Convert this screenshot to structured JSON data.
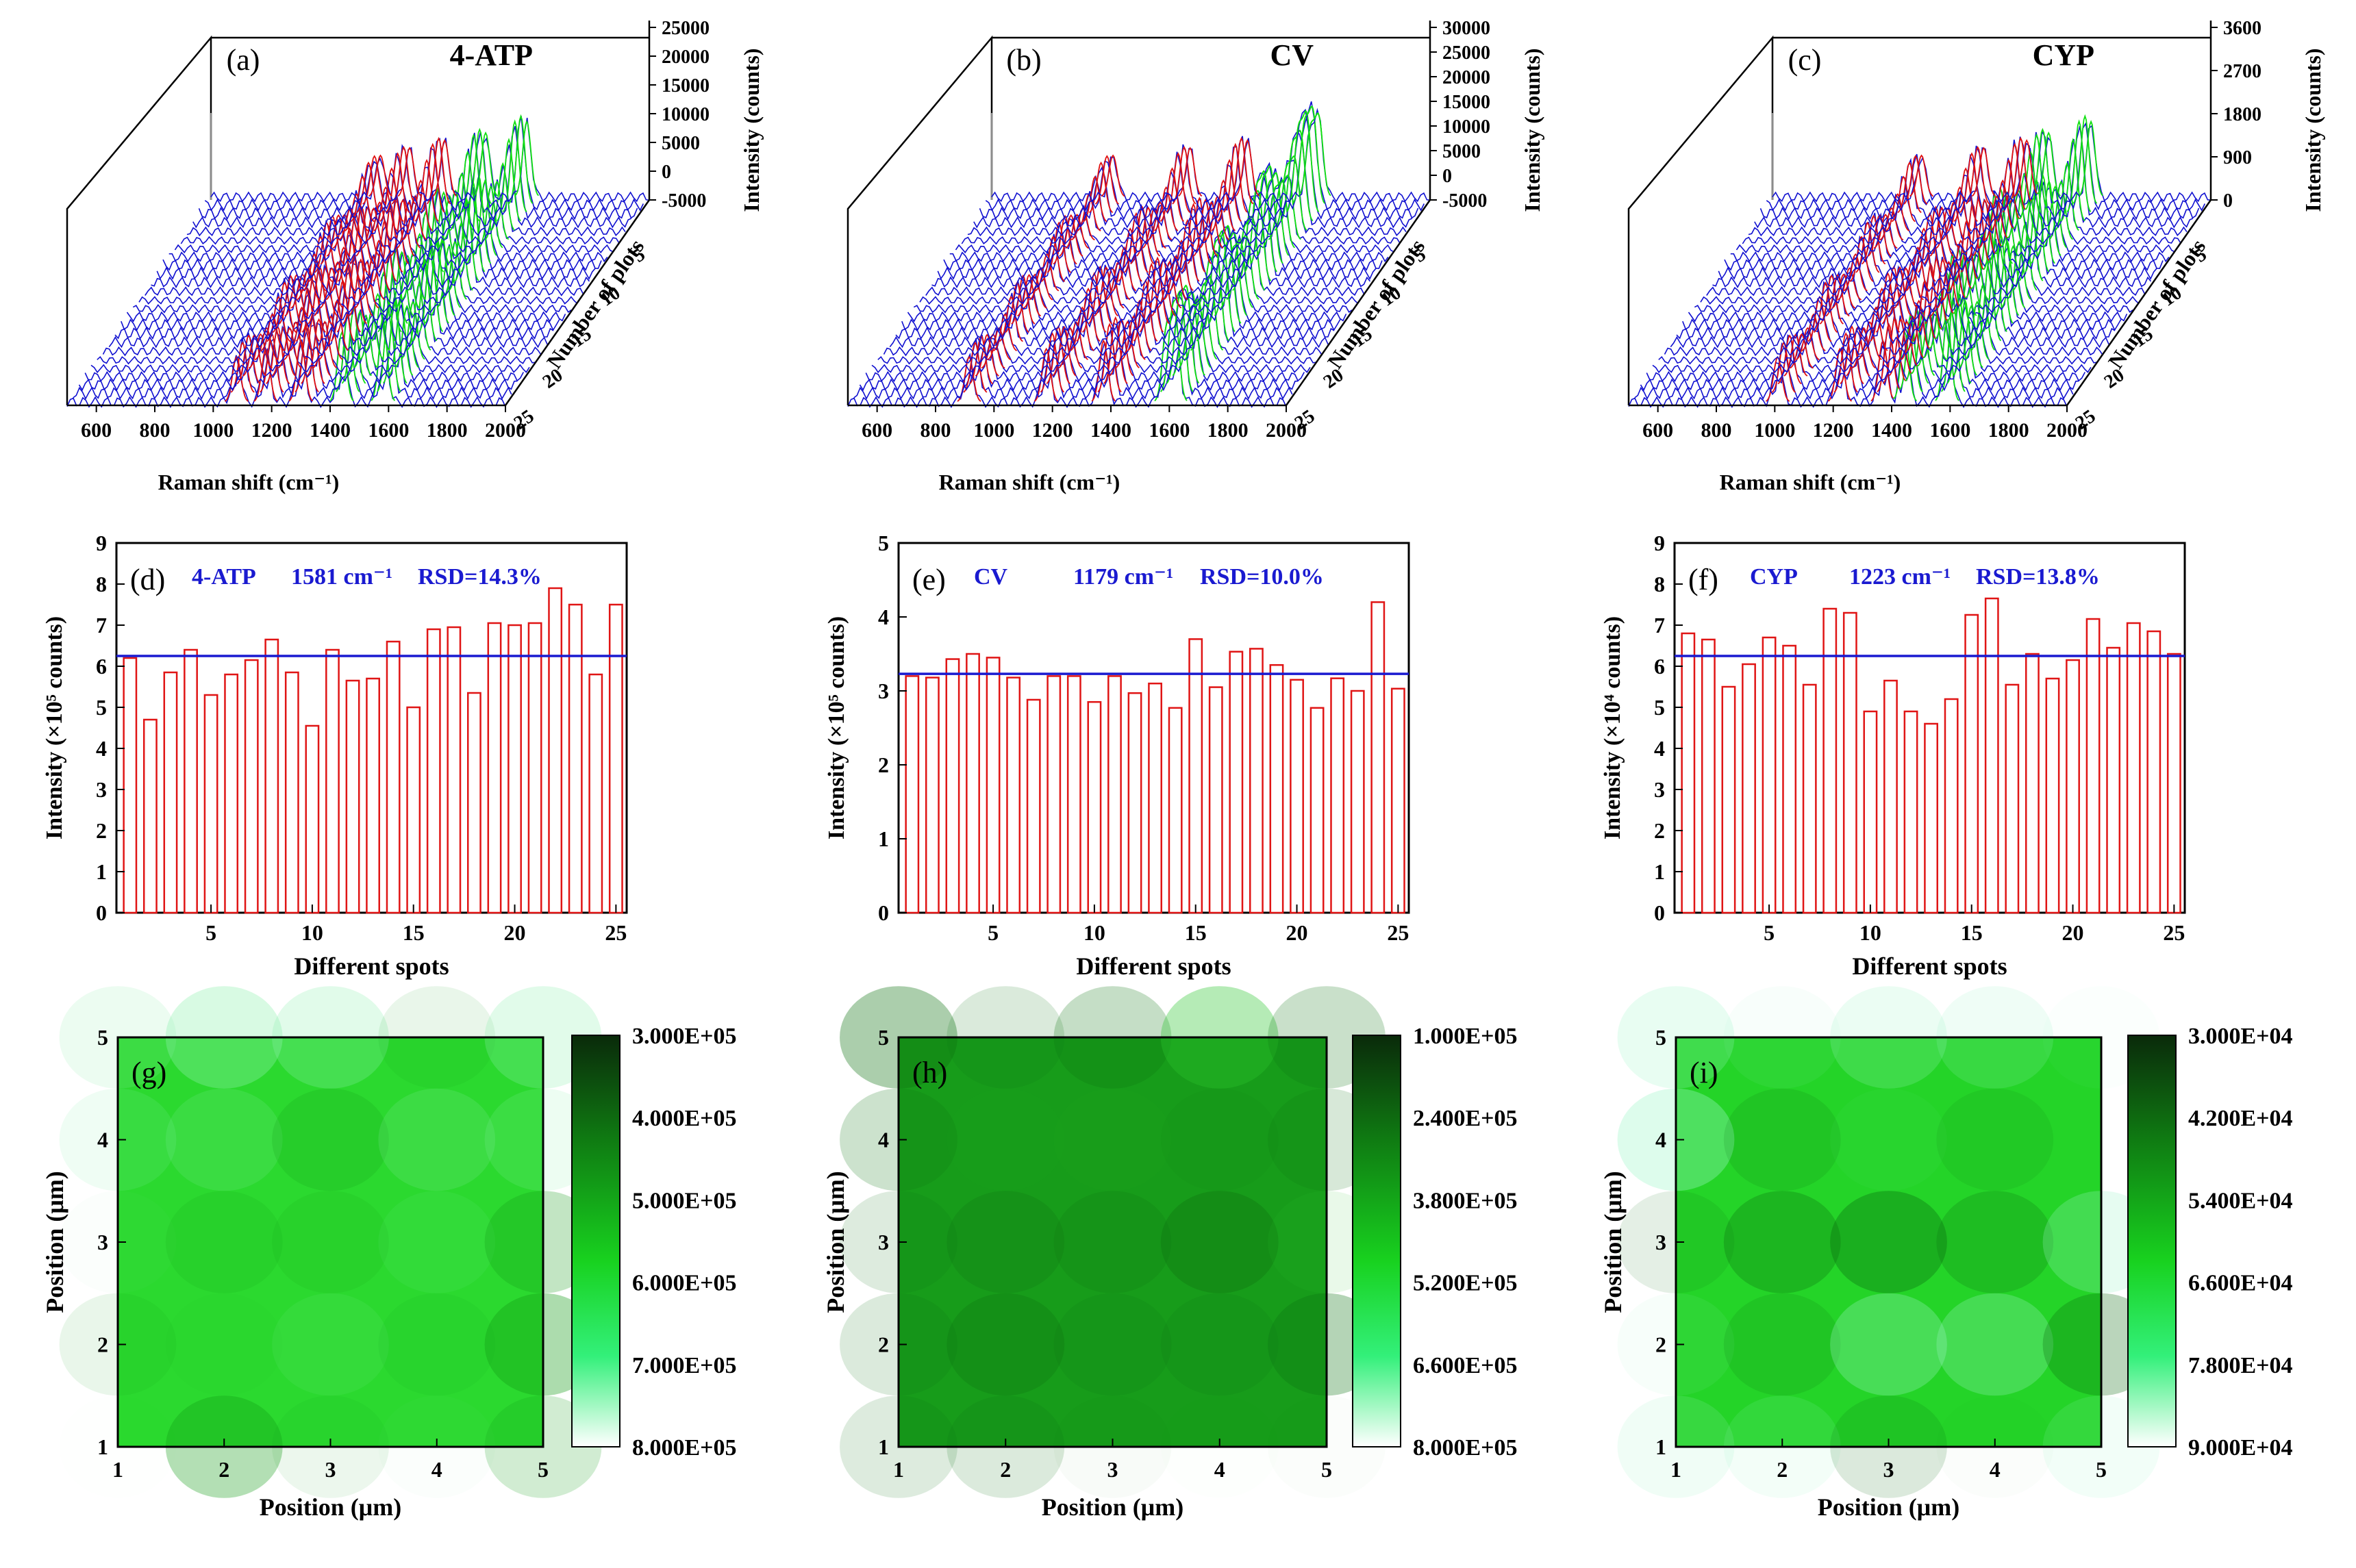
{
  "figure": {
    "colors": {
      "axis": "#000000",
      "blue": "#1010d0",
      "red": "#e01010",
      "green": "#10e010",
      "mean_line": "#1a1ad0",
      "bar_edge": "#e01515",
      "bar_fill": "#ffffff"
    }
  },
  "chart_data": [
    {
      "id": "a",
      "type": "waterfall",
      "label": "(a)",
      "analyte": "4-ATP",
      "xlabel": "Raman shift (cm⁻¹)",
      "zlabel": "Intensity (counts)",
      "ylabel": "Number of plots",
      "xticks": [
        "600",
        "800",
        "1000",
        "1200",
        "1400",
        "1600",
        "1800",
        "2000"
      ],
      "zticks": [
        "25000",
        "20000",
        "15000",
        "10000",
        "5000",
        "0",
        "-5000"
      ],
      "yticks": [
        "5",
        "10",
        "15",
        "20",
        "25"
      ],
      "peaks": [
        1080,
        1180,
        1300,
        1440,
        1581
      ]
    },
    {
      "id": "b",
      "type": "waterfall",
      "label": "(b)",
      "analyte": "CV",
      "xlabel": "Raman shift (cm⁻¹)",
      "zlabel": "Intensity (counts)",
      "ylabel": "Number of plots",
      "xticks": [
        "600",
        "800",
        "1000",
        "1200",
        "1400",
        "1600",
        "1800",
        "2000"
      ],
      "zticks": [
        "30000",
        "25000",
        "20000",
        "15000",
        "10000",
        "5000",
        "0",
        "-5000"
      ],
      "yticks": [
        "5",
        "10",
        "15",
        "20",
        "25"
      ],
      "peaks": [
        915,
        1179,
        1375,
        1590,
        1620
      ]
    },
    {
      "id": "c",
      "type": "waterfall",
      "label": "(c)",
      "analyte": "CYP",
      "xlabel": "Raman shift (cm⁻¹)",
      "zlabel": "Intensity (counts)",
      "ylabel": "Number of plots",
      "xticks": [
        "600",
        "800",
        "1000",
        "1200",
        "1400",
        "1600",
        "1800",
        "2000"
      ],
      "zticks": [
        "3600",
        "2700",
        "1800",
        "900",
        "0"
      ],
      "yticks": [
        "5",
        "10",
        "15",
        "20",
        "25"
      ],
      "peaks": [
        1010,
        1223,
        1370,
        1445,
        1590
      ]
    },
    {
      "id": "d",
      "type": "bar",
      "label": "(d)",
      "analyte": "4-ATP",
      "peak": "1581 cm⁻¹",
      "rsd": "RSD=14.3%",
      "xlabel": "Different spots",
      "ylabel": "Intensity (×10⁵ counts)",
      "ylim": [
        0,
        9
      ],
      "yticks": [
        "0",
        "1",
        "2",
        "3",
        "4",
        "5",
        "6",
        "7",
        "8",
        "9"
      ],
      "xticks": [
        "5",
        "10",
        "15",
        "20",
        "25"
      ],
      "mean": 6.25,
      "values": [
        6.2,
        4.7,
        5.85,
        6.4,
        5.3,
        5.8,
        6.15,
        6.65,
        5.85,
        4.55,
        6.4,
        5.65,
        5.7,
        6.6,
        5.0,
        6.9,
        6.95,
        5.35,
        7.05,
        7.0,
        7.05,
        7.9,
        7.5,
        5.8,
        7.5
      ]
    },
    {
      "id": "e",
      "type": "bar",
      "label": "(e)",
      "analyte": "CV",
      "peak": "1179 cm⁻¹",
      "rsd": "RSD=10.0%",
      "xlabel": "Different spots",
      "ylabel": "Intensity (×10⁵ counts)",
      "ylim": [
        0,
        5
      ],
      "yticks": [
        "0",
        "1",
        "2",
        "3",
        "4",
        "5"
      ],
      "xticks": [
        "5",
        "10",
        "15",
        "20",
        "25"
      ],
      "mean": 3.23,
      "values": [
        3.2,
        3.18,
        3.43,
        3.5,
        3.45,
        3.18,
        2.88,
        3.2,
        3.2,
        2.85,
        3.2,
        2.97,
        3.1,
        2.77,
        3.7,
        3.05,
        3.53,
        3.57,
        3.35,
        3.15,
        2.77,
        3.17,
        3.0,
        4.2,
        3.03
      ]
    },
    {
      "id": "f",
      "type": "bar",
      "label": "(f)",
      "analyte": "CYP",
      "peak": "1223 cm⁻¹",
      "rsd": "RSD=13.8%",
      "xlabel": "Different spots",
      "ylabel": "Intensity (×10⁴ counts)",
      "ylim": [
        0,
        9
      ],
      "yticks": [
        "0",
        "1",
        "2",
        "3",
        "4",
        "5",
        "6",
        "7",
        "8",
        "9"
      ],
      "xticks": [
        "5",
        "10",
        "15",
        "20",
        "25"
      ],
      "mean": 6.25,
      "values": [
        6.8,
        6.65,
        5.5,
        6.05,
        6.7,
        6.5,
        5.55,
        7.4,
        7.3,
        4.9,
        5.65,
        4.9,
        4.6,
        5.2,
        7.25,
        7.65,
        5.55,
        6.3,
        5.7,
        6.15,
        7.15,
        6.45,
        7.05,
        6.85,
        6.3
      ]
    },
    {
      "id": "g",
      "type": "heatmap",
      "label": "(g)",
      "xlabel": "Position (μm)",
      "ylabel": "Position (μm)",
      "xticks": [
        "1",
        "2",
        "3",
        "4",
        "5"
      ],
      "yticks": [
        "1",
        "2",
        "3",
        "4",
        "5"
      ],
      "colorbar": [
        "3.000E+05",
        "4.000E+05",
        "5.000E+05",
        "6.000E+05",
        "7.000E+05",
        "8.000E+05"
      ],
      "grid": [
        [
          6.2,
          4.7,
          5.85,
          6.4,
          5.3
        ],
        [
          5.8,
          6.15,
          6.65,
          5.85,
          4.55
        ],
        [
          6.4,
          5.65,
          5.7,
          6.6,
          5.0
        ],
        [
          6.9,
          6.95,
          5.35,
          7.05,
          7.0
        ],
        [
          7.05,
          7.9,
          7.5,
          5.8,
          7.5
        ]
      ]
    },
    {
      "id": "h",
      "type": "heatmap",
      "label": "(h)",
      "xlabel": "Position (μm)",
      "ylabel": "Position (μm)",
      "xticks": [
        "1",
        "2",
        "3",
        "4",
        "5"
      ],
      "yticks": [
        "1",
        "2",
        "3",
        "4",
        "5"
      ],
      "colorbar": [
        "1.000E+05",
        "2.400E+05",
        "3.800E+05",
        "5.200E+05",
        "6.600E+05",
        "8.000E+05"
      ],
      "grid": [
        [
          3.2,
          3.18,
          3.43,
          3.5,
          3.45
        ],
        [
          3.18,
          2.88,
          3.2,
          3.2,
          2.85
        ],
        [
          3.2,
          2.97,
          3.1,
          2.77,
          3.7
        ],
        [
          3.05,
          3.53,
          3.57,
          3.35,
          3.15
        ],
        [
          2.77,
          3.17,
          3.0,
          4.2,
          3.03
        ]
      ]
    },
    {
      "id": "i",
      "type": "heatmap",
      "label": "(i)",
      "xlabel": "Position (μm)",
      "ylabel": "Position (μm)",
      "xticks": [
        "1",
        "2",
        "3",
        "4",
        "5"
      ],
      "yticks": [
        "1",
        "2",
        "3",
        "4",
        "5"
      ],
      "colorbar": [
        "3.000E+04",
        "4.200E+04",
        "5.400E+04",
        "6.600E+04",
        "7.800E+04",
        "9.000E+04"
      ],
      "grid": [
        [
          6.8,
          6.65,
          5.5,
          6.05,
          6.7
        ],
        [
          6.5,
          5.55,
          7.4,
          7.3,
          4.9
        ],
        [
          5.65,
          4.9,
          4.6,
          5.2,
          7.25
        ],
        [
          7.65,
          5.55,
          6.3,
          5.7,
          6.15
        ],
        [
          7.15,
          6.45,
          7.05,
          6.85,
          6.3
        ]
      ]
    }
  ]
}
